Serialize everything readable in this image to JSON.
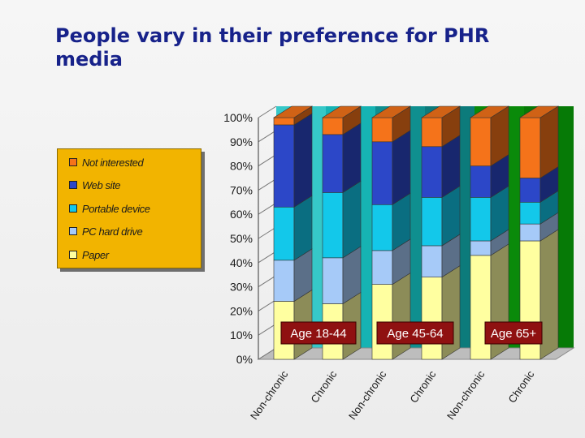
{
  "title": "People vary in their preference for PHR media",
  "colors": {
    "not_interested": "#f5731a",
    "web_site": "#2c47c8",
    "portable_device": "#13c8ea",
    "pc_hard_drive": "#a6caf8",
    "paper": "#ffffa0",
    "legend_bg": "#f2b400",
    "title": "#17228a",
    "group_label_bg": "#8f1111"
  },
  "legend": {
    "items": [
      {
        "label": "Not interested",
        "color": "#f5731a"
      },
      {
        "label": "Web site",
        "color": "#2c47c8"
      },
      {
        "label": "Portable device",
        "color": "#13c8ea"
      },
      {
        "label": "PC hard drive",
        "color": "#a6caf8"
      },
      {
        "label": "Paper",
        "color": "#ffffa0"
      }
    ]
  },
  "chart_data": {
    "type": "bar",
    "stacked": true,
    "title": "People vary in their preference for PHR media",
    "xlabel": "",
    "ylabel": "",
    "ylim": [
      0,
      100
    ],
    "yticks": [
      "0%",
      "10%",
      "20%",
      "30%",
      "40%",
      "50%",
      "60%",
      "70%",
      "80%",
      "90%",
      "100%"
    ],
    "categories": [
      "Non-chronic",
      "Chronic",
      "Non-chronic",
      "Chronic",
      "Non-chronic",
      "Chronic"
    ],
    "groups": [
      "Age 18-44",
      "Age 45-64",
      "Age 65+"
    ],
    "series": [
      {
        "name": "Paper",
        "values": [
          24,
          23,
          31,
          34,
          43,
          49
        ]
      },
      {
        "name": "PC hard drive",
        "values": [
          17,
          19,
          14,
          13,
          6,
          7
        ]
      },
      {
        "name": "Portable device",
        "values": [
          22,
          27,
          19,
          20,
          18,
          9
        ]
      },
      {
        "name": "Web site",
        "values": [
          34,
          24,
          26,
          21,
          13,
          10
        ]
      },
      {
        "name": "Not interested",
        "values": [
          3,
          7,
          10,
          12,
          20,
          25
        ]
      }
    ]
  }
}
